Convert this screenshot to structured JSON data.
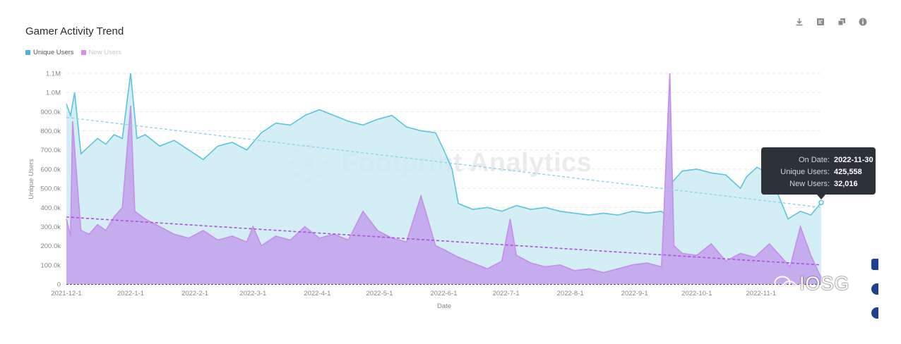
{
  "chart_data": {
    "type": "area",
    "title": "Gamer Activity Trend",
    "xlabel": "Date",
    "ylabel": "Unique Users",
    "ylim": [
      0,
      1100000
    ],
    "yticks": [
      0,
      100000,
      200000,
      300000,
      400000,
      500000,
      600000,
      700000,
      800000,
      900000,
      1000000,
      1100000
    ],
    "ytick_labels": [
      "0",
      "100.0k",
      "200.0k",
      "300.0k",
      "400.0k",
      "500.0k",
      "600.0k",
      "700.0k",
      "800.0k",
      "900.0k",
      "1.0M",
      "1.1M"
    ],
    "xtick_labels": [
      "2021-12-1",
      "2022-1-1",
      "2022-2-1",
      "2022-3-1",
      "2022-4-1",
      "2022-5-1",
      "2022-6-1",
      "2022-7-1",
      "2022-8-1",
      "2022-9-1",
      "2022-10-1",
      "2022-11-1"
    ],
    "xlim": [
      "2021-12-1",
      "2022-11-30"
    ],
    "grid": "horizontal dashed",
    "legend": "top-left",
    "series": [
      {
        "name": "Unique Users",
        "color": "#5bc4dc",
        "fill": "#cdebf4",
        "points": [
          [
            "2021-12-1",
            940000
          ],
          [
            "2021-12-3",
            880000
          ],
          [
            "2021-12-5",
            1000000
          ],
          [
            "2021-12-8",
            680000
          ],
          [
            "2021-12-12",
            720000
          ],
          [
            "2021-12-16",
            760000
          ],
          [
            "2021-12-20",
            730000
          ],
          [
            "2021-12-24",
            780000
          ],
          [
            "2021-12-28",
            760000
          ],
          [
            "2022-1-1",
            1100000
          ],
          [
            "2022-1-4",
            760000
          ],
          [
            "2022-1-8",
            780000
          ],
          [
            "2022-1-15",
            720000
          ],
          [
            "2022-1-22",
            750000
          ],
          [
            "2022-1-29",
            700000
          ],
          [
            "2022-2-5",
            650000
          ],
          [
            "2022-2-12",
            720000
          ],
          [
            "2022-2-19",
            740000
          ],
          [
            "2022-2-26",
            700000
          ],
          [
            "2022-3-5",
            790000
          ],
          [
            "2022-3-12",
            840000
          ],
          [
            "2022-3-19",
            830000
          ],
          [
            "2022-3-26",
            880000
          ],
          [
            "2022-4-2",
            910000
          ],
          [
            "2022-4-9",
            880000
          ],
          [
            "2022-4-16",
            850000
          ],
          [
            "2022-4-23",
            830000
          ],
          [
            "2022-4-30",
            860000
          ],
          [
            "2022-5-7",
            880000
          ],
          [
            "2022-5-14",
            820000
          ],
          [
            "2022-5-21",
            800000
          ],
          [
            "2022-5-28",
            790000
          ],
          [
            "2022-6-1",
            700000
          ],
          [
            "2022-6-5",
            600000
          ],
          [
            "2022-6-8",
            420000
          ],
          [
            "2022-6-15",
            390000
          ],
          [
            "2022-6-22",
            400000
          ],
          [
            "2022-6-29",
            380000
          ],
          [
            "2022-7-6",
            410000
          ],
          [
            "2022-7-13",
            390000
          ],
          [
            "2022-7-20",
            400000
          ],
          [
            "2022-7-27",
            380000
          ],
          [
            "2022-8-3",
            370000
          ],
          [
            "2022-8-10",
            360000
          ],
          [
            "2022-8-17",
            370000
          ],
          [
            "2022-8-24",
            360000
          ],
          [
            "2022-8-31",
            380000
          ],
          [
            "2022-9-7",
            370000
          ],
          [
            "2022-9-14",
            380000
          ],
          [
            "2022-9-18",
            340000
          ],
          [
            "2022-9-19",
            530000
          ],
          [
            "2022-9-24",
            590000
          ],
          [
            "2022-10-1",
            600000
          ],
          [
            "2022-10-8",
            580000
          ],
          [
            "2022-10-15",
            570000
          ],
          [
            "2022-10-22",
            500000
          ],
          [
            "2022-10-25",
            560000
          ],
          [
            "2022-10-30",
            610000
          ],
          [
            "2022-11-4",
            580000
          ],
          [
            "2022-11-8",
            500000
          ],
          [
            "2022-11-14",
            340000
          ],
          [
            "2022-11-20",
            380000
          ],
          [
            "2022-11-25",
            360000
          ],
          [
            "2022-11-30",
            425558
          ]
        ],
        "trendline": [
          [
            "2021-12-1",
            870000
          ],
          [
            "2022-11-30",
            400000
          ]
        ]
      },
      {
        "name": "New Users",
        "color": "#c58ee8",
        "fill": "#c4a8ee",
        "points": [
          [
            "2021-12-1",
            340000
          ],
          [
            "2021-12-3",
            250000
          ],
          [
            "2021-12-4",
            850000
          ],
          [
            "2021-12-6",
            560000
          ],
          [
            "2021-12-8",
            280000
          ],
          [
            "2021-12-12",
            260000
          ],
          [
            "2021-12-16",
            310000
          ],
          [
            "2021-12-20",
            280000
          ],
          [
            "2021-12-24",
            350000
          ],
          [
            "2021-12-28",
            400000
          ],
          [
            "2022-1-1",
            930000
          ],
          [
            "2022-1-3",
            380000
          ],
          [
            "2022-1-8",
            340000
          ],
          [
            "2022-1-15",
            300000
          ],
          [
            "2022-1-22",
            260000
          ],
          [
            "2022-1-29",
            240000
          ],
          [
            "2022-2-5",
            280000
          ],
          [
            "2022-2-12",
            230000
          ],
          [
            "2022-2-19",
            250000
          ],
          [
            "2022-2-26",
            220000
          ],
          [
            "2022-3-1",
            300000
          ],
          [
            "2022-3-5",
            200000
          ],
          [
            "2022-3-12",
            250000
          ],
          [
            "2022-3-19",
            230000
          ],
          [
            "2022-3-26",
            300000
          ],
          [
            "2022-4-2",
            240000
          ],
          [
            "2022-4-9",
            260000
          ],
          [
            "2022-4-16",
            230000
          ],
          [
            "2022-4-23",
            380000
          ],
          [
            "2022-4-30",
            280000
          ],
          [
            "2022-5-7",
            240000
          ],
          [
            "2022-5-14",
            220000
          ],
          [
            "2022-5-21",
            460000
          ],
          [
            "2022-5-28",
            200000
          ],
          [
            "2022-6-1",
            180000
          ],
          [
            "2022-6-8",
            140000
          ],
          [
            "2022-6-15",
            110000
          ],
          [
            "2022-6-22",
            80000
          ],
          [
            "2022-6-29",
            120000
          ],
          [
            "2022-7-3",
            340000
          ],
          [
            "2022-7-6",
            150000
          ],
          [
            "2022-7-13",
            110000
          ],
          [
            "2022-7-20",
            90000
          ],
          [
            "2022-7-27",
            100000
          ],
          [
            "2022-8-3",
            70000
          ],
          [
            "2022-8-10",
            80000
          ],
          [
            "2022-8-17",
            60000
          ],
          [
            "2022-8-24",
            80000
          ],
          [
            "2022-8-31",
            100000
          ],
          [
            "2022-9-7",
            110000
          ],
          [
            "2022-9-14",
            90000
          ],
          [
            "2022-9-18",
            1100000
          ],
          [
            "2022-9-20",
            200000
          ],
          [
            "2022-9-24",
            160000
          ],
          [
            "2022-10-1",
            150000
          ],
          [
            "2022-10-8",
            210000
          ],
          [
            "2022-10-15",
            120000
          ],
          [
            "2022-10-22",
            160000
          ],
          [
            "2022-10-29",
            140000
          ],
          [
            "2022-11-5",
            210000
          ],
          [
            "2022-11-10",
            150000
          ],
          [
            "2022-11-15",
            90000
          ],
          [
            "2022-11-20",
            300000
          ],
          [
            "2022-11-25",
            150000
          ],
          [
            "2022-11-30",
            32016
          ]
        ],
        "trendline": [
          [
            "2021-12-1",
            350000
          ],
          [
            "2022-11-30",
            100000
          ]
        ]
      }
    ],
    "annotations": {
      "watermark": "Footprint Analytics",
      "tooltip": {
        "rows": [
          {
            "label": "On Date:",
            "value": "2022-11-30"
          },
          {
            "label": "Unique Users:",
            "value": "425,558"
          },
          {
            "label": "New Users:",
            "value": "32,016"
          }
        ]
      },
      "corner_mark": "IOSG"
    }
  },
  "toolbar": {
    "icons": [
      "download-icon",
      "chart-view-icon",
      "copy-icon",
      "info-icon"
    ]
  }
}
